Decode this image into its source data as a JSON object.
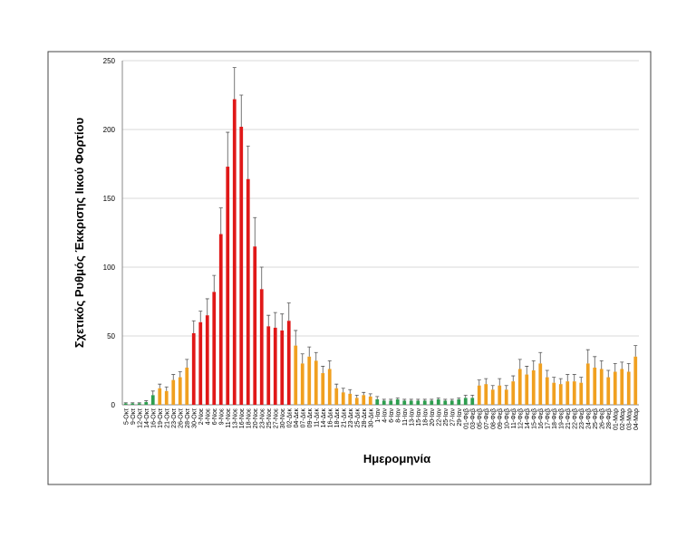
{
  "chart_data": {
    "type": "bar",
    "ylabel": "Σχετικός Ρυθμός Έκκρισης Ιικού Φορτίου",
    "xlabel": "Ημερομηνία",
    "categories": [
      "5-Οκτ",
      "9-Οκτ",
      "12-Οκτ",
      "14-Οκτ",
      "16-Οκτ",
      "19-Οκτ",
      "21-Οκτ",
      "23-Οκτ",
      "26-Οκτ",
      "28-Οκτ",
      "30-Οκτ",
      "2-Νοε",
      "4-Νοε",
      "6-Νοε",
      "9-Νοε",
      "11-Νοε",
      "13-Νοε",
      "16-Νοε",
      "18-Νοε",
      "20-Νοε",
      "23-Νοε",
      "25-Νοε",
      "27-Νοε",
      "30-Νοε",
      "02-Δεκ",
      "04-Δεκ",
      "07-Δεκ",
      "09-Δεκ",
      "11-Δεκ",
      "14-Δεκ",
      "16-Δεκ",
      "18-Δεκ",
      "21-Δεκ",
      "23-Δεκ",
      "25-Δεκ",
      "28-Δεκ",
      "30-Δεκ",
      "1-Ιαν",
      "4-Ιαν",
      "6-Ιαν",
      "8-Ιαν",
      "11-Ιαν",
      "13-Ιαν",
      "15-Ιαν",
      "18-Ιαν",
      "20-Ιαν",
      "22-Ιαν",
      "25-Ιαν",
      "27-Ιαν",
      "29-Ιαν",
      "01-Φεβ",
      "03-Φεβ",
      "05-Φεβ",
      "07-Φεβ",
      "08-Φεβ",
      "09-Φεβ",
      "10-Φεβ",
      "11-Φεβ",
      "12-Φεβ",
      "14-Φεβ",
      "15-Φεβ",
      "16-Φεβ",
      "17-Φεβ",
      "18-Φεβ",
      "19-Φεβ",
      "21-Φεβ",
      "22-Φεβ",
      "23-Φεβ",
      "24-Φεβ",
      "25-Φεβ",
      "26-Φεβ",
      "28-Φεβ",
      "01-Μαρ",
      "02-Μαρ",
      "03-Μαρ",
      "04-Μαρ"
    ],
    "values": [
      1,
      1,
      1,
      2,
      7,
      12,
      10,
      18,
      20,
      27,
      52,
      60,
      65,
      82,
      124,
      173,
      222,
      202,
      164,
      115,
      84,
      57,
      56,
      54,
      61,
      43,
      30,
      35,
      32,
      23,
      26,
      12,
      9,
      8,
      5,
      7,
      6,
      4,
      3,
      3,
      4,
      3,
      3,
      3,
      3,
      3,
      4,
      3,
      3,
      4,
      5,
      5,
      14,
      15,
      11,
      14,
      11,
      17,
      26,
      22,
      25,
      30,
      20,
      16,
      15,
      17,
      17,
      16,
      30,
      27,
      26,
      20,
      24,
      26,
      24,
      35
    ],
    "errors": [
      0.5,
      0.5,
      0.5,
      1,
      3,
      3,
      3,
      4,
      4,
      6,
      9,
      8,
      12,
      12,
      19,
      25,
      23,
      23,
      24,
      21,
      16,
      8,
      11,
      12,
      13,
      11,
      7,
      7,
      6,
      5,
      6,
      3,
      3,
      3,
      2,
      2,
      2,
      2,
      1,
      1,
      1,
      1,
      1,
      1,
      1,
      1,
      1,
      1,
      1,
      1,
      2,
      2,
      4,
      4,
      3,
      5,
      3,
      4,
      7,
      6,
      7,
      8,
      5,
      4,
      4,
      5,
      5,
      4,
      10,
      8,
      6,
      5,
      6,
      5,
      6,
      8
    ],
    "colors": [
      "#2e9e4f",
      "#2e9e4f",
      "#2e9e4f",
      "#2e9e4f",
      "#2e9e4f",
      "#f0a020",
      "#f0a020",
      "#f0a020",
      "#f0a020",
      "#f0a020",
      "#e01818",
      "#e01818",
      "#e01818",
      "#e01818",
      "#e01818",
      "#e01818",
      "#e01818",
      "#e01818",
      "#e01818",
      "#e01818",
      "#e01818",
      "#e01818",
      "#e01818",
      "#e01818",
      "#e01818",
      "#f0a020",
      "#f0a020",
      "#f0a020",
      "#f0a020",
      "#f0a020",
      "#f0a020",
      "#f0a020",
      "#f0a020",
      "#f0a020",
      "#f0a020",
      "#f0a020",
      "#f0a020",
      "#2e9e4f",
      "#2e9e4f",
      "#2e9e4f",
      "#2e9e4f",
      "#2e9e4f",
      "#2e9e4f",
      "#2e9e4f",
      "#2e9e4f",
      "#2e9e4f",
      "#2e9e4f",
      "#2e9e4f",
      "#2e9e4f",
      "#2e9e4f",
      "#2e9e4f",
      "#2e9e4f",
      "#f0a020",
      "#f0a020",
      "#f0a020",
      "#f0a020",
      "#f0a020",
      "#f0a020",
      "#f0a020",
      "#f0a020",
      "#f0a020",
      "#f0a020",
      "#f0a020",
      "#f0a020",
      "#f0a020",
      "#f0a020",
      "#f0a020",
      "#f0a020",
      "#f0a020",
      "#f0a020",
      "#f0a020",
      "#f0a020",
      "#f0a020",
      "#f0a020",
      "#f0a020",
      "#f0a020"
    ],
    "ylim": [
      0,
      250
    ],
    "yticks": [
      0,
      50,
      100,
      150,
      200,
      250
    ],
    "grid": true
  }
}
